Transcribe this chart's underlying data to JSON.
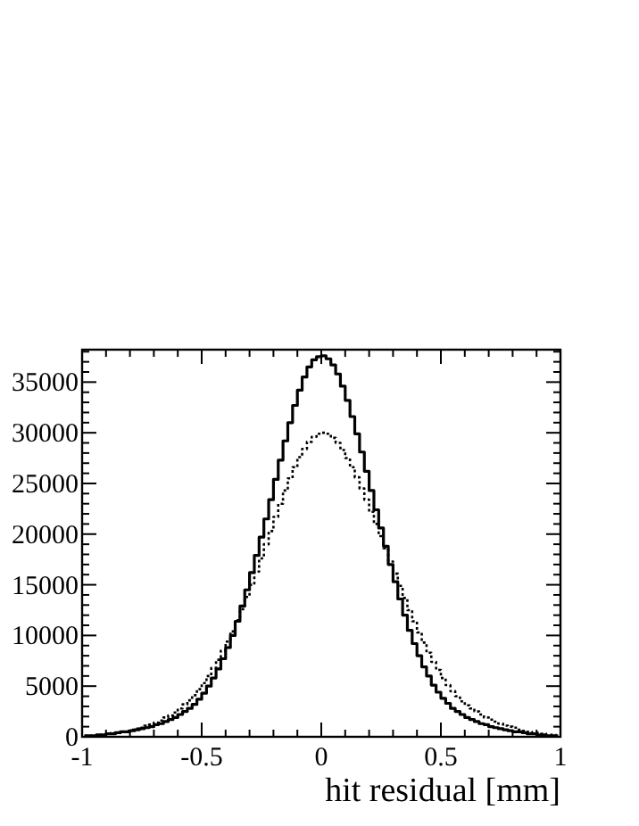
{
  "chart_data": {
    "type": "step",
    "xlabel": "hit residual  [mm]",
    "x": [
      -0.99,
      -0.97,
      -0.95,
      -0.93,
      -0.91,
      -0.89,
      -0.87,
      -0.85,
      -0.83,
      -0.81,
      -0.79,
      -0.77,
      -0.75,
      -0.73,
      -0.71,
      -0.69,
      -0.67,
      -0.65,
      -0.63,
      -0.61,
      -0.59,
      -0.57,
      -0.55,
      -0.53,
      -0.51,
      -0.49,
      -0.47,
      -0.45,
      -0.43,
      -0.41,
      -0.39,
      -0.37,
      -0.35,
      -0.33,
      -0.31,
      -0.29,
      -0.27,
      -0.25,
      -0.23,
      -0.21,
      -0.19,
      -0.17,
      -0.15,
      -0.13,
      -0.11,
      -0.09,
      -0.07,
      -0.05,
      -0.03,
      -0.01,
      0.01,
      0.03,
      0.05,
      0.07,
      0.09,
      0.11,
      0.13,
      0.15,
      0.17,
      0.19,
      0.21,
      0.23,
      0.25,
      0.27,
      0.29,
      0.31,
      0.33,
      0.35,
      0.37,
      0.39,
      0.41,
      0.43,
      0.45,
      0.47,
      0.49,
      0.51,
      0.53,
      0.55,
      0.57,
      0.59,
      0.61,
      0.63,
      0.65,
      0.67,
      0.69,
      0.71,
      0.73,
      0.75,
      0.77,
      0.79,
      0.81,
      0.83,
      0.85,
      0.87,
      0.89,
      0.91,
      0.93,
      0.95,
      0.97,
      0.99
    ],
    "series": [
      {
        "color": "#000000",
        "line_style": "solid",
        "values": [
          100,
          100,
          100,
          200,
          200,
          300,
          300,
          400,
          500,
          500,
          600,
          700,
          800,
          900,
          1000,
          1200,
          1300,
          1500,
          1700,
          1900,
          2200,
          2500,
          2800,
          3200,
          3700,
          4300,
          5000,
          5800,
          6700,
          7700,
          8800,
          10000,
          11400,
          12900,
          14500,
          16200,
          17900,
          19700,
          21500,
          23400,
          25400,
          27300,
          29200,
          31000,
          32700,
          34200,
          35500,
          36500,
          37200,
          37500,
          37600,
          37300,
          36700,
          35800,
          34600,
          33200,
          31600,
          29900,
          28100,
          26200,
          24300,
          22400,
          20600,
          18800,
          17000,
          15300,
          13600,
          12000,
          10500,
          9200,
          8000,
          6900,
          6000,
          5100,
          4400,
          3800,
          3300,
          2800,
          2500,
          2200,
          1900,
          1700,
          1500,
          1300,
          1200,
          1000,
          900,
          800,
          700,
          600,
          500,
          500,
          400,
          300,
          300,
          200,
          200,
          100,
          100,
          100
        ]
      },
      {
        "color": "#000000",
        "line_style": "dotted",
        "values": [
          100,
          100,
          100,
          200,
          200,
          300,
          400,
          400,
          500,
          600,
          700,
          800,
          900,
          1100,
          1200,
          1400,
          1600,
          1900,
          2100,
          2400,
          2800,
          3200,
          3600,
          4100,
          4700,
          5300,
          6000,
          6800,
          7600,
          8500,
          9400,
          10400,
          11500,
          12600,
          13800,
          15000,
          16300,
          17600,
          19000,
          20300,
          21700,
          23000,
          24300,
          25500,
          26600,
          27600,
          28400,
          29100,
          29600,
          29900,
          30000,
          29900,
          29500,
          29000,
          28300,
          27500,
          26600,
          25600,
          24500,
          23400,
          22200,
          21000,
          19800,
          18600,
          17300,
          16100,
          14900,
          13700,
          12500,
          11400,
          10300,
          9300,
          8300,
          7400,
          6600,
          5800,
          5100,
          4500,
          4000,
          3500,
          3100,
          2800,
          2500,
          2200,
          1900,
          1700,
          1500,
          1300,
          1100,
          1000,
          900,
          700,
          600,
          500,
          400,
          400,
          300,
          200,
          200,
          100
        ]
      }
    ],
    "xlim": [
      -1,
      1
    ],
    "xticks": [
      -1,
      {
        "value": -0.9,
        "label": null
      },
      {
        "value": -0.8,
        "label": null
      },
      {
        "value": -0.7,
        "label": null
      },
      {
        "value": -0.6,
        "label": null
      },
      -0.5,
      {
        "value": -0.4,
        "label": null
      },
      {
        "value": -0.3,
        "label": null
      },
      {
        "value": -0.2,
        "label": null
      },
      {
        "value": -0.1,
        "label": null
      },
      0,
      {
        "value": 0.1,
        "label": null
      },
      {
        "value": 0.2,
        "label": null
      },
      {
        "value": 0.3,
        "label": null
      },
      {
        "value": 0.4,
        "label": null
      },
      0.5,
      {
        "value": 0.6,
        "label": null
      },
      {
        "value": 0.7,
        "label": null
      },
      {
        "value": 0.8,
        "label": null
      },
      {
        "value": 0.9,
        "label": null
      },
      1
    ],
    "ylim": [
      0,
      38200
    ],
    "yticks": [
      0,
      {
        "value": 1000,
        "label": null
      },
      {
        "value": 2000,
        "label": null
      },
      {
        "value": 3000,
        "label": null
      },
      {
        "value": 4000,
        "label": null
      },
      5000,
      {
        "value": 6000,
        "label": null
      },
      {
        "value": 7000,
        "label": null
      },
      {
        "value": 8000,
        "label": null
      },
      {
        "value": 9000,
        "label": null
      },
      10000,
      {
        "value": 11000,
        "label": null
      },
      {
        "value": 12000,
        "label": null
      },
      {
        "value": 13000,
        "label": null
      },
      {
        "value": 14000,
        "label": null
      },
      15000,
      {
        "value": 16000,
        "label": null
      },
      {
        "value": 17000,
        "label": null
      },
      {
        "value": 18000,
        "label": null
      },
      {
        "value": 19000,
        "label": null
      },
      20000,
      {
        "value": 21000,
        "label": null
      },
      {
        "value": 22000,
        "label": null
      },
      {
        "value": 23000,
        "label": null
      },
      {
        "value": 24000,
        "label": null
      },
      25000,
      {
        "value": 26000,
        "label": null
      },
      {
        "value": 27000,
        "label": null
      },
      {
        "value": 28000,
        "label": null
      },
      {
        "value": 29000,
        "label": null
      },
      30000,
      {
        "value": 31000,
        "label": null
      },
      {
        "value": 32000,
        "label": null
      },
      {
        "value": 33000,
        "label": null
      },
      {
        "value": 34000,
        "label": null
      },
      35000,
      {
        "value": 36000,
        "label": null
      },
      {
        "value": 37000,
        "label": null
      },
      {
        "value": 38000,
        "label": null
      }
    ]
  }
}
